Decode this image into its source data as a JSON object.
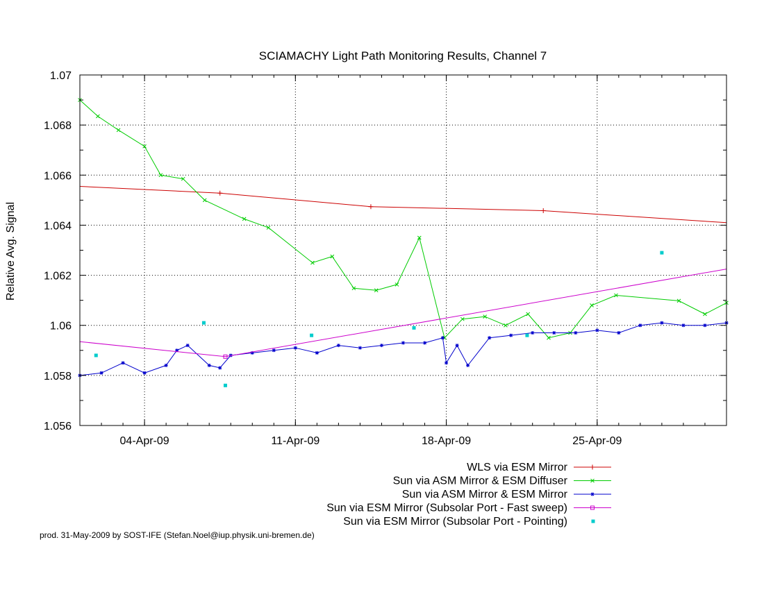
{
  "credit": "prod. 31-May-2009 by SOST-IFE (Stefan.Noel@iup.physik.uni-bremen.de)",
  "chart_data": {
    "type": "line",
    "title": "SCIAMACHY Light Path Monitoring Results, Channel 7",
    "xlabel": "",
    "ylabel": "Relative Avg. Signal",
    "x_unit": "date (2009)",
    "xlim": [
      "2009-04-01T00:00",
      "2009-05-01T00:00"
    ],
    "ylim": [
      1.056,
      1.07
    ],
    "x_ticks": [
      {
        "label": "04-Apr-09",
        "value": "2009-04-04"
      },
      {
        "label": "11-Apr-09",
        "value": "2009-04-11"
      },
      {
        "label": "18-Apr-09",
        "value": "2009-04-18"
      },
      {
        "label": "25-Apr-09",
        "value": "2009-04-25"
      }
    ],
    "y_ticks": [
      {
        "label": "1.056",
        "value": 1.056
      },
      {
        "label": "1.058",
        "value": 1.058
      },
      {
        "label": "1.06",
        "value": 1.06
      },
      {
        "label": "1.062",
        "value": 1.062
      },
      {
        "label": "1.064",
        "value": 1.064
      },
      {
        "label": "1.066",
        "value": 1.066
      },
      {
        "label": "1.068",
        "value": 1.068
      },
      {
        "label": "1.07",
        "value": 1.07
      }
    ],
    "grid": true,
    "legend_position": "bottom-right, below plot",
    "series": [
      {
        "name": "WLS via ESM Mirror",
        "color": "#cc0000",
        "style": "line-plus",
        "x": [
          "2009-04-01",
          "2009-04-07T12:00",
          "2009-04-14T12:00",
          "2009-04-22T12:00",
          "2009-05-01"
        ],
        "y": [
          1.06555,
          1.06528,
          1.06474,
          1.06458,
          1.0641
        ],
        "markers": [
          "2009-04-07T12:00",
          "2009-04-14T12:00",
          "2009-04-22T12:00"
        ]
      },
      {
        "name": "Sun via ASM Mirror & ESM Diffuser",
        "color": "#00cc00",
        "style": "line-x",
        "x": [
          "2009-04-01",
          "2009-04-01T20:00",
          "2009-04-02T19:00",
          "2009-04-04T00:00",
          "2009-04-04T18:00",
          "2009-04-05T19:00",
          "2009-04-06T19:00",
          "2009-04-08T15:00",
          "2009-04-09T18:00",
          "2009-04-11T19:00",
          "2009-04-12T17:00",
          "2009-04-13T17:00",
          "2009-04-14T18:00",
          "2009-04-15T17:00",
          "2009-04-16T18:00",
          "2009-04-17T22:00",
          "2009-04-18T18:00",
          "2009-04-19T19:00",
          "2009-04-20T18:00",
          "2009-04-21T19:00",
          "2009-04-22T18:00",
          "2009-04-23T18:00",
          "2009-04-24T18:00",
          "2009-04-25T21:00",
          "2009-04-28T19:00",
          "2009-04-30T00:00",
          "2009-05-01"
        ],
        "y": [
          1.069,
          1.06835,
          1.0678,
          1.06715,
          1.066,
          1.06585,
          1.065,
          1.06425,
          1.0639,
          1.0625,
          1.06275,
          1.06148,
          1.0614,
          1.06163,
          1.0635,
          1.0595,
          1.06025,
          1.06035,
          1.06,
          1.06045,
          1.0595,
          1.0597,
          1.0608,
          1.0612,
          1.06098,
          1.06045,
          1.0609
        ]
      },
      {
        "name": "Sun via ASM Mirror & ESM Mirror",
        "color": "#0000cc",
        "style": "line-star",
        "x": [
          "2009-04-01",
          "2009-04-02",
          "2009-04-03",
          "2009-04-04",
          "2009-04-05",
          "2009-04-05T12:00",
          "2009-04-06",
          "2009-04-07",
          "2009-04-07T12:00",
          "2009-04-08",
          "2009-04-09",
          "2009-04-10",
          "2009-04-11",
          "2009-04-12",
          "2009-04-13",
          "2009-04-14",
          "2009-04-15",
          "2009-04-16",
          "2009-04-17",
          "2009-04-17T20:00",
          "2009-04-18",
          "2009-04-18T12:00",
          "2009-04-19",
          "2009-04-20",
          "2009-04-21",
          "2009-04-22",
          "2009-04-23",
          "2009-04-24",
          "2009-04-25",
          "2009-04-26",
          "2009-04-27",
          "2009-04-28",
          "2009-04-29",
          "2009-04-30",
          "2009-05-01"
        ],
        "y": [
          1.058,
          1.0581,
          1.0585,
          1.0581,
          1.0584,
          1.059,
          1.0592,
          1.0584,
          1.0583,
          1.0588,
          1.0589,
          1.059,
          1.0591,
          1.0589,
          1.0592,
          1.0591,
          1.0592,
          1.0593,
          1.0593,
          1.0595,
          1.0585,
          1.0592,
          1.0584,
          1.0595,
          1.0596,
          1.0597,
          1.0597,
          1.0597,
          1.0598,
          1.0597,
          1.06,
          1.0601,
          1.06,
          1.06,
          1.0601
        ]
      },
      {
        "name": "Sun via ESM Mirror (Subsolar Port - Fast sweep)",
        "color": "#cc00cc",
        "style": "line-square",
        "x": [
          "2009-04-01",
          "2009-04-07T18:00",
          "2009-05-01"
        ],
        "y": [
          1.05935,
          1.05875,
          1.06225
        ],
        "markers": [
          "2009-04-07T18:00"
        ]
      },
      {
        "name": "Sun via ESM Mirror (Subsolar Port - Pointing)",
        "color": "#00cccc",
        "style": "points",
        "x": [
          "2009-04-01T18:00",
          "2009-04-06T18:00",
          "2009-04-07T18:00",
          "2009-04-11T18:00",
          "2009-04-16T12:00",
          "2009-04-21T18:00",
          "2009-04-28T00:00"
        ],
        "y": [
          1.0588,
          1.0601,
          1.0576,
          1.0596,
          1.0599,
          1.0596,
          1.0629
        ]
      }
    ]
  }
}
